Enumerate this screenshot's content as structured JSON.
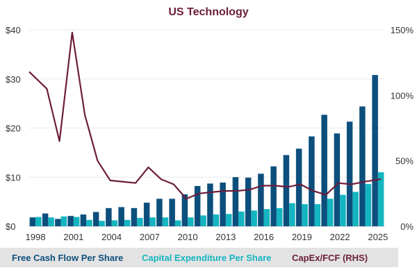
{
  "chart_data": {
    "type": "bar",
    "title": "US Technology",
    "x": [
      1998,
      1999,
      2000,
      2001,
      2002,
      2003,
      2004,
      2005,
      2006,
      2007,
      2008,
      2009,
      2010,
      2011,
      2012,
      2013,
      2014,
      2015,
      2016,
      2017,
      2018,
      2019,
      2020,
      2021,
      2022,
      2023,
      2024,
      2025
    ],
    "x_ticks": [
      "1998",
      "2001",
      "2004",
      "2007",
      "2010",
      "2013",
      "2016",
      "2019",
      "2022",
      "2025"
    ],
    "y_left": {
      "ticks": [
        "$0",
        "$10",
        "$20",
        "$30",
        "$40"
      ],
      "range": [
        0,
        40
      ]
    },
    "y_right": {
      "ticks": [
        "0%",
        "50%",
        "100%",
        "150%"
      ],
      "range": [
        0,
        150
      ]
    },
    "series": [
      {
        "name": "Free Cash Flow Per Share",
        "axis": "left",
        "kind": "bar",
        "color": "#0d4f7c",
        "values": [
          1.8,
          2.6,
          1.5,
          2.1,
          2.4,
          2.9,
          3.7,
          3.9,
          3.7,
          4.8,
          5.6,
          5.6,
          6.5,
          8.2,
          8.7,
          8.9,
          10.0,
          9.9,
          10.7,
          12.2,
          14.5,
          15.8,
          18.3,
          22.7,
          18.9,
          21.3,
          24.4,
          30.8
        ]
      },
      {
        "name": "Capital Expenditure Per Share",
        "axis": "left",
        "kind": "bar",
        "color": "#14b5c0",
        "values": [
          1.9,
          1.8,
          2.0,
          1.9,
          1.3,
          1.1,
          1.2,
          1.3,
          1.7,
          1.8,
          1.8,
          1.2,
          1.8,
          2.2,
          2.4,
          2.5,
          3.0,
          3.2,
          3.5,
          3.7,
          4.7,
          4.5,
          4.5,
          5.6,
          6.4,
          7.0,
          8.6,
          11.0
        ]
      },
      {
        "name": "CapEx/FCF (RHS)",
        "axis": "right",
        "kind": "line",
        "color": "#6b1d3a",
        "values": [
          118,
          105,
          65,
          148,
          85,
          50,
          35,
          34,
          33,
          45,
          36,
          32,
          21,
          25,
          26,
          27,
          27,
          28,
          31,
          31,
          30,
          32,
          27,
          24,
          33,
          32,
          34,
          36
        ]
      }
    ],
    "legend_position": "bottom",
    "grid": true
  },
  "colors": {
    "title": "#6b1d3a",
    "legend_bg": "#e3e3e3",
    "grid": "#e8e8e8"
  }
}
